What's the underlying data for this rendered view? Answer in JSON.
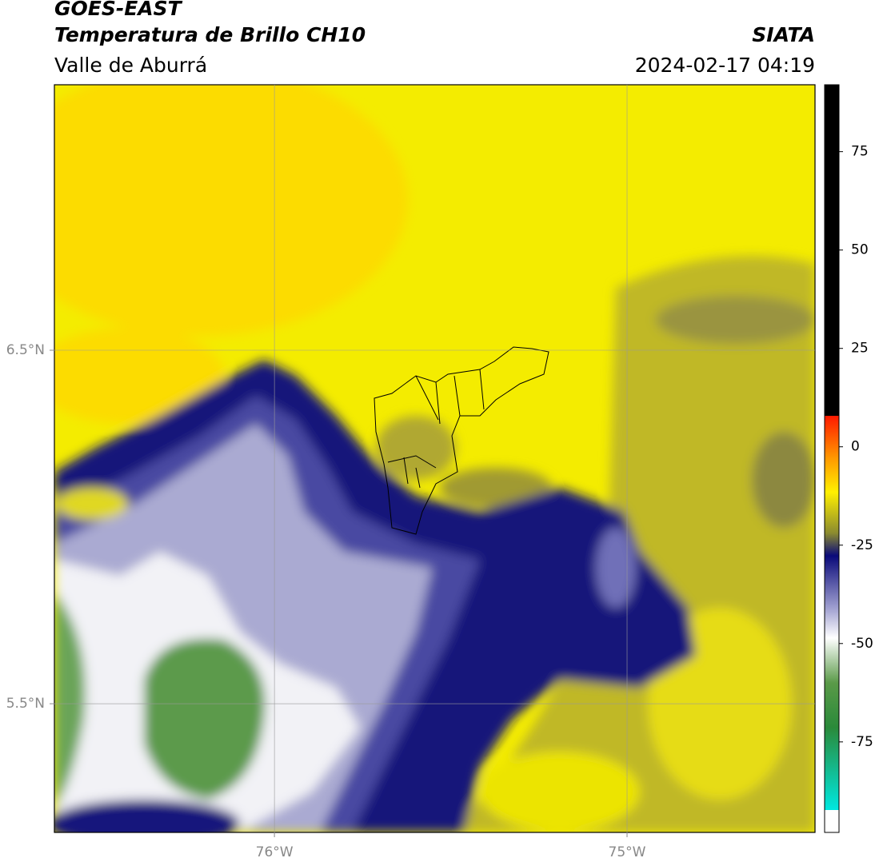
{
  "header": {
    "title": "GOES-EAST",
    "subtitle": "Temperatura de Brillo CH10",
    "region": "Valle de Aburrá",
    "source": "SIATA",
    "datetime": "2024-02-17 04:19"
  },
  "map": {
    "xlim": [
      -76.624,
      -74.467
    ],
    "ylim": [
      5.136,
      7.251
    ],
    "xticks": [
      {
        "value": -76,
        "label": "76°W"
      },
      {
        "value": -75,
        "label": "75°W"
      }
    ],
    "yticks": [
      {
        "value": 5.5,
        "label": "5.5°N"
      },
      {
        "value": 6.5,
        "label": "6.5°N"
      }
    ],
    "grid": true
  },
  "colorbar": {
    "lim": [
      -98,
      92
    ],
    "ticks": [
      75,
      50,
      25,
      0,
      -25,
      -50,
      -75
    ]
  }
}
